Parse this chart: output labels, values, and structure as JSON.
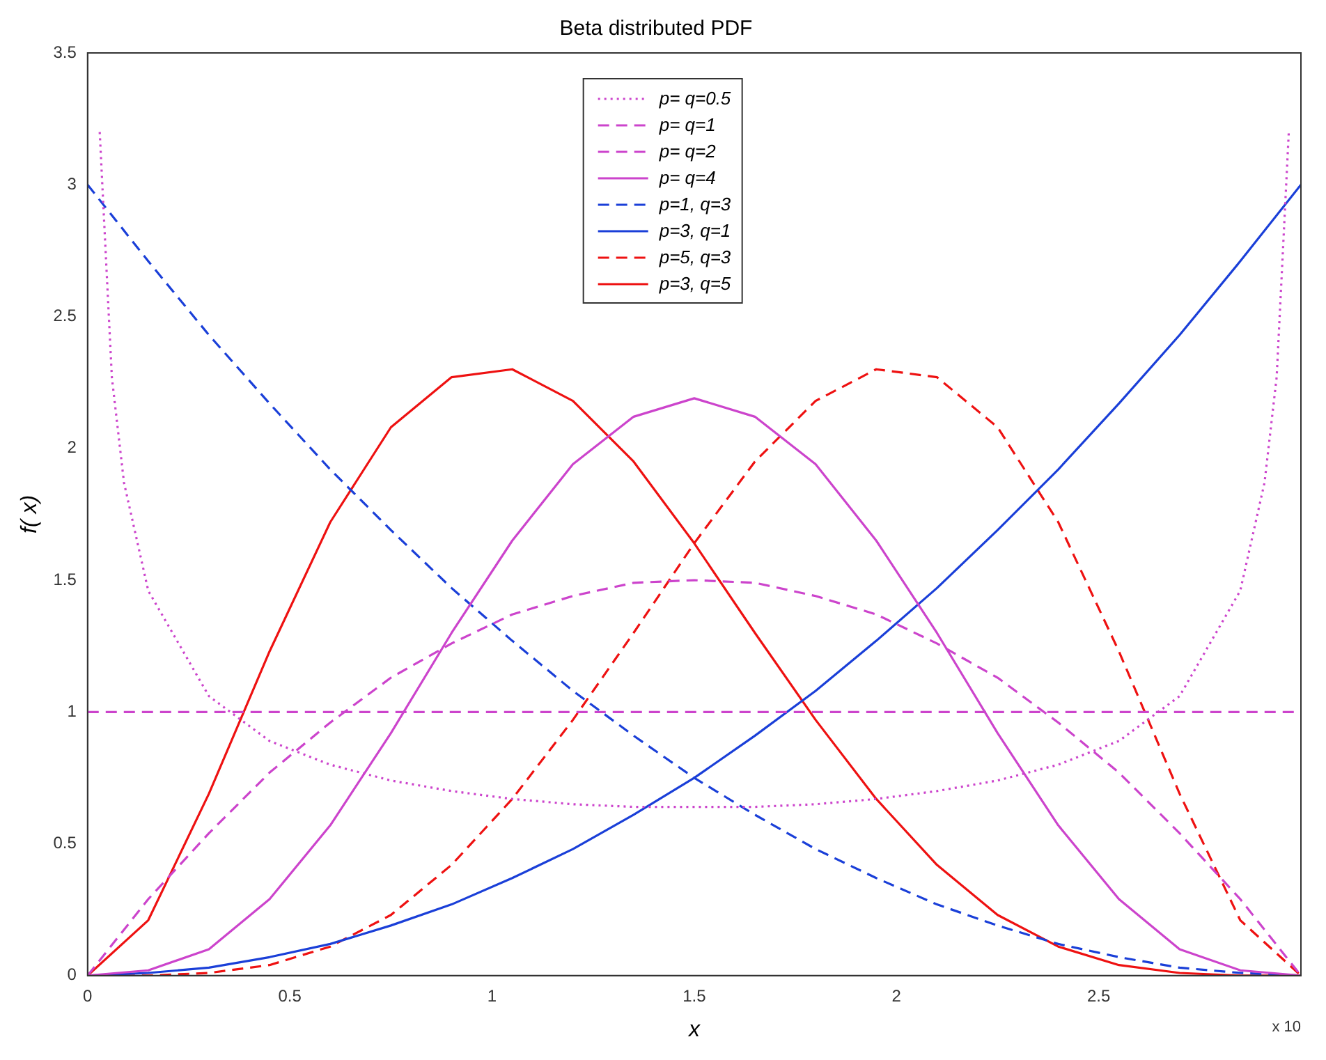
{
  "chart_data": {
    "type": "line",
    "title": "Beta distributed PDF",
    "xlabel": "x",
    "ylabel": "f( x)",
    "xlim": [
      0,
      3
    ],
    "xticks": [
      0,
      0.5,
      1,
      1.5,
      2,
      2.5
    ],
    "ylim": [
      0,
      3.5
    ],
    "yticks": [
      0,
      0.5,
      1,
      1.5,
      2,
      2.5,
      3,
      3.5
    ],
    "grid": false,
    "legend": "top",
    "marker": "none",
    "annotations": [
      "x 10"
    ],
    "x": [
      0,
      0.15,
      0.3,
      0.45,
      0.6,
      0.75,
      0.9,
      1.05,
      1.2,
      1.35,
      1.5,
      1.65,
      1.8,
      1.95,
      2.1,
      2.25,
      2.4,
      2.55,
      2.7,
      2.85,
      3
    ],
    "series": [
      {
        "name": "p= q=0.5",
        "color": "#cc44cc",
        "line_style": "dotted",
        "x": [
          0.03,
          0.06,
          0.09,
          0.15,
          0.3,
          0.45,
          0.6,
          0.75,
          0.9,
          1.05,
          1.2,
          1.35,
          1.5,
          1.65,
          1.8,
          1.95,
          2.1,
          2.25,
          2.4,
          2.55,
          2.7,
          2.85,
          2.91,
          2.94,
          2.97
        ],
        "values": [
          3.2,
          2.27,
          1.87,
          1.46,
          1.06,
          0.89,
          0.8,
          0.74,
          0.7,
          0.67,
          0.65,
          0.64,
          0.64,
          0.64,
          0.65,
          0.67,
          0.7,
          0.74,
          0.8,
          0.89,
          1.06,
          1.46,
          1.87,
          2.27,
          3.2
        ]
      },
      {
        "name": "p= q=1",
        "color": "#cc44cc",
        "line_style": "dashed",
        "values": [
          1,
          1,
          1,
          1,
          1,
          1,
          1,
          1,
          1,
          1,
          1,
          1,
          1,
          1,
          1,
          1,
          1,
          1,
          1,
          1,
          1
        ]
      },
      {
        "name": "p= q=2",
        "color": "#cc44cc",
        "line_style": "dashed",
        "values": [
          0,
          0.29,
          0.54,
          0.77,
          0.96,
          1.13,
          1.26,
          1.37,
          1.44,
          1.49,
          1.5,
          1.49,
          1.44,
          1.37,
          1.26,
          1.13,
          0.96,
          0.77,
          0.54,
          0.29,
          0
        ]
      },
      {
        "name": "p= q=4",
        "color": "#cc44cc",
        "line_style": "solid",
        "values": [
          0,
          0.02,
          0.1,
          0.29,
          0.57,
          0.92,
          1.3,
          1.65,
          1.94,
          2.12,
          2.19,
          2.12,
          1.94,
          1.65,
          1.3,
          0.92,
          0.57,
          0.29,
          0.1,
          0.02,
          0
        ]
      },
      {
        "name": "p=1,  q=3",
        "color": "#1a3fd8",
        "line_style": "dashed",
        "values": [
          3,
          2.71,
          2.43,
          2.17,
          1.92,
          1.69,
          1.47,
          1.27,
          1.08,
          0.91,
          0.75,
          0.61,
          0.48,
          0.37,
          0.27,
          0.19,
          0.12,
          0.07,
          0.03,
          0.01,
          0
        ]
      },
      {
        "name": "p=3,  q=1",
        "color": "#1a3fd8",
        "line_style": "solid",
        "values": [
          0,
          0.01,
          0.03,
          0.07,
          0.12,
          0.19,
          0.27,
          0.37,
          0.48,
          0.61,
          0.75,
          0.91,
          1.08,
          1.27,
          1.47,
          1.69,
          1.92,
          2.17,
          2.43,
          2.71,
          3
        ]
      },
      {
        "name": "p=5,  q=3",
        "color": "#ee1111",
        "line_style": "dashed",
        "values": [
          0,
          0,
          0.01,
          0.04,
          0.11,
          0.23,
          0.42,
          0.67,
          0.97,
          1.3,
          1.64,
          1.95,
          2.18,
          2.3,
          2.27,
          2.08,
          1.72,
          1.23,
          0.69,
          0.21,
          0
        ]
      },
      {
        "name": "p=3,  q=5",
        "color": "#ee1111",
        "line_style": "solid",
        "values": [
          0,
          0.21,
          0.69,
          1.23,
          1.72,
          2.08,
          2.27,
          2.3,
          2.18,
          1.95,
          1.64,
          1.3,
          0.97,
          0.67,
          0.42,
          0.23,
          0.11,
          0.04,
          0.01,
          0,
          0
        ]
      }
    ]
  }
}
